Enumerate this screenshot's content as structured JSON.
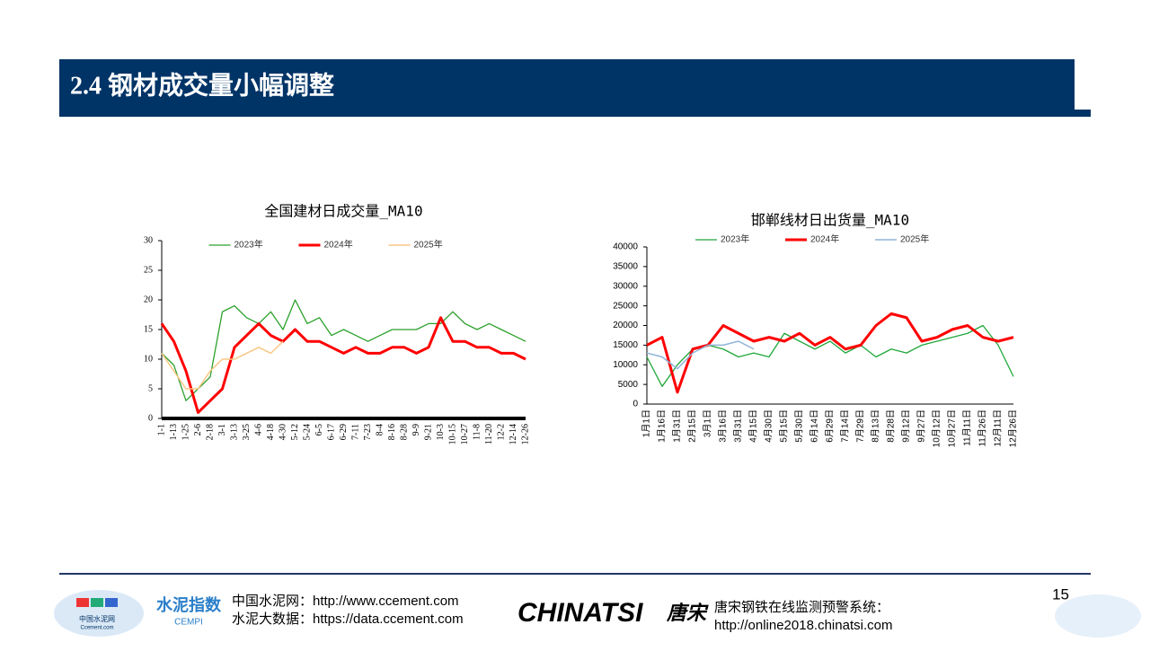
{
  "slide": {
    "title": "2.4 钢材成交量小幅调整",
    "page_number": "15",
    "footer": {
      "ccement_line1": "中国水泥网：http://www.ccement.com",
      "ccement_line2": "水泥大数据：https://data.ccement.com",
      "ccement_logo": "中国水泥网",
      "ccement_logo_sub": "Ccement.com",
      "cempi_logo": "水泥指数",
      "cempi_sub": "CEMPI",
      "chinatsi_logo": "CHINATSI",
      "chinatsi_cn": "唐宋",
      "chinatsi_line1": "唐宋钢铁在线监测预警系统：",
      "chinatsi_line2": "http://online2018.chinatsi.com"
    }
  },
  "chart_data": [
    {
      "type": "line",
      "title": "全国建材日成交量_MA10",
      "categories": [
        "1-1",
        "1-13",
        "1-25",
        "2-6",
        "2-18",
        "3-1",
        "3-13",
        "3-25",
        "4-6",
        "4-18",
        "4-30",
        "5-12",
        "5-24",
        "6-5",
        "6-17",
        "6-29",
        "7-11",
        "7-23",
        "8-4",
        "8-16",
        "8-28",
        "9-9",
        "9-21",
        "10-3",
        "10-15",
        "10-27",
        "11-8",
        "11-20",
        "12-2",
        "12-14",
        "12-26"
      ],
      "series": [
        {
          "name": "2023年",
          "color": "#2ca02c",
          "values": [
            11,
            9,
            3,
            5,
            7,
            18,
            19,
            17,
            16,
            18,
            15,
            20,
            16,
            17,
            14,
            15,
            14,
            13,
            14,
            15,
            15,
            15,
            16,
            16,
            18,
            16,
            15,
            16,
            15,
            14,
            13
          ]
        },
        {
          "name": "2024年",
          "color": "#ff0000",
          "values": [
            16,
            13,
            8,
            1,
            3,
            5,
            12,
            14,
            16,
            14,
            13,
            15,
            13,
            13,
            12,
            11,
            12,
            11,
            11,
            12,
            12,
            11,
            12,
            17,
            13,
            13,
            12,
            12,
            11,
            11,
            10
          ]
        },
        {
          "name": "2025年",
          "color": "#f9c784",
          "values": [
            11,
            8,
            5,
            5,
            8,
            10,
            10,
            11,
            12,
            11,
            13,
            null,
            null,
            null,
            null,
            null,
            null,
            null,
            null,
            null,
            null,
            null,
            null,
            null,
            null,
            null,
            null,
            null,
            null,
            null,
            null
          ]
        }
      ],
      "ylim": [
        0,
        30
      ],
      "yticks": [
        0,
        5,
        10,
        15,
        20,
        25,
        30
      ],
      "legend": "top"
    },
    {
      "type": "line",
      "title": "邯郸线材日出货量_MA10",
      "categories": [
        "1月1日",
        "1月16日",
        "1月31日",
        "2月15日",
        "3月1日",
        "3月16日",
        "3月31日",
        "4月15日",
        "4月30日",
        "5月15日",
        "5月30日",
        "6月14日",
        "6月29日",
        "7月14日",
        "7月29日",
        "8月13日",
        "8月28日",
        "9月12日",
        "9月27日",
        "10月12日",
        "10月27日",
        "11月11日",
        "11月26日",
        "12月11日",
        "12月26日"
      ],
      "series": [
        {
          "name": "2023年",
          "color": "#1fa83a",
          "values": [
            12000,
            4500,
            10000,
            14000,
            15000,
            14000,
            12000,
            13000,
            12000,
            18000,
            16000,
            14000,
            16000,
            13000,
            15000,
            12000,
            14000,
            13000,
            15000,
            16000,
            17000,
            18000,
            20000,
            15000,
            7000
          ]
        },
        {
          "name": "2024年",
          "color": "#ff0000",
          "values": [
            15000,
            17000,
            3000,
            14000,
            15000,
            20000,
            18000,
            16000,
            17000,
            16000,
            18000,
            15000,
            17000,
            14000,
            15000,
            20000,
            23000,
            22000,
            16000,
            17000,
            19000,
            20000,
            17000,
            16000,
            17000
          ]
        },
        {
          "name": "2025年",
          "color": "#8fb4d8",
          "values": [
            13000,
            12000,
            9000,
            13000,
            15000,
            15000,
            16000,
            14000,
            null,
            null,
            null,
            null,
            null,
            null,
            null,
            null,
            null,
            null,
            null,
            null,
            null,
            null,
            null,
            null,
            null
          ]
        }
      ],
      "ylim": [
        0,
        40000
      ],
      "yticks": [
        0,
        5000,
        10000,
        15000,
        20000,
        25000,
        30000,
        35000,
        40000
      ],
      "legend": "top"
    }
  ]
}
